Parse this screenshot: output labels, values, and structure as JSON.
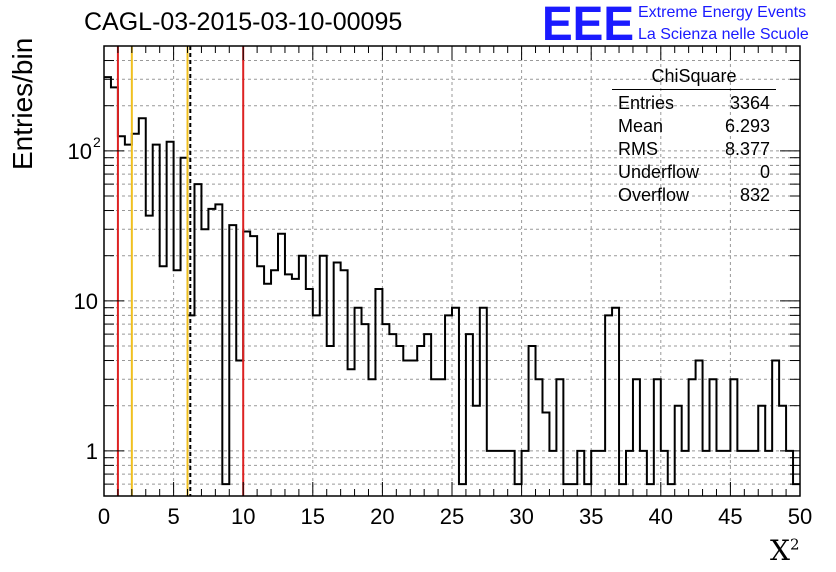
{
  "title": "CAGL-03-2015-03-10-00095",
  "logo": {
    "mark": "EEE",
    "line1": "Extreme Energy Events",
    "line2": "La Scienza nelle Scuole",
    "color": "#1a1aff"
  },
  "stats_box": {
    "title": "ChiSquare",
    "rows": [
      {
        "label": "Entries",
        "value": "3364"
      },
      {
        "label": "Mean",
        "value": "6.293"
      },
      {
        "label": "RMS",
        "value": "8.377"
      },
      {
        "label": "Underflow",
        "value": "0"
      },
      {
        "label": "Overflow",
        "value": "832"
      }
    ]
  },
  "chart_data": {
    "type": "histogram",
    "title": "CAGL-03-2015-03-10-00095",
    "xlabel": "X",
    "xlabel_superscript": "2",
    "ylabel": "Entries/bin",
    "xlim": [
      0,
      50
    ],
    "yscale": "log",
    "ylim": [
      0.5,
      500
    ],
    "bin_width": 0.5,
    "grid": true,
    "x_ticks": [
      "0",
      "5",
      "10",
      "15",
      "20",
      "25",
      "30",
      "35",
      "40",
      "45",
      "50"
    ],
    "y_ticks": [
      {
        "value": 1,
        "label": "1"
      },
      {
        "value": 10,
        "label": "10"
      },
      {
        "value": 100,
        "label": "10",
        "exponent": "2"
      }
    ],
    "counts": [
      310,
      265,
      125,
      110,
      130,
      165,
      37,
      110,
      17,
      115,
      16,
      90,
      8,
      60,
      30,
      41,
      44,
      0.6,
      32,
      4,
      29,
      27,
      17,
      13,
      16,
      28,
      15,
      14,
      20,
      12,
      8,
      20,
      5,
      18,
      16,
      3.5,
      9,
      7,
      3,
      12,
      7,
      6,
      5,
      4,
      4,
      5,
      6,
      3,
      3,
      8,
      9,
      0.6,
      6,
      2,
      9,
      1,
      1,
      1,
      1,
      0.6,
      1,
      5,
      3,
      1.8,
      1,
      3,
      0.6,
      0.6,
      1,
      0.6,
      1,
      1,
      8,
      9,
      0.6,
      1,
      3,
      1,
      0.6,
      3,
      1,
      0.6,
      2,
      1,
      3,
      4,
      1,
      3,
      1,
      1,
      3,
      1,
      1,
      1,
      2,
      1,
      4,
      2,
      1,
      0.6
    ],
    "vertical_lines": [
      {
        "x": 1,
        "color": "#dd2222",
        "style": "solid"
      },
      {
        "x": 2,
        "color": "#f0c020",
        "style": "solid"
      },
      {
        "x": 6,
        "color": "#f0c020",
        "style": "solid"
      },
      {
        "x": 6.2,
        "color": "#000000",
        "style": "dashed"
      },
      {
        "x": 10,
        "color": "#dd2222",
        "style": "solid"
      }
    ]
  }
}
